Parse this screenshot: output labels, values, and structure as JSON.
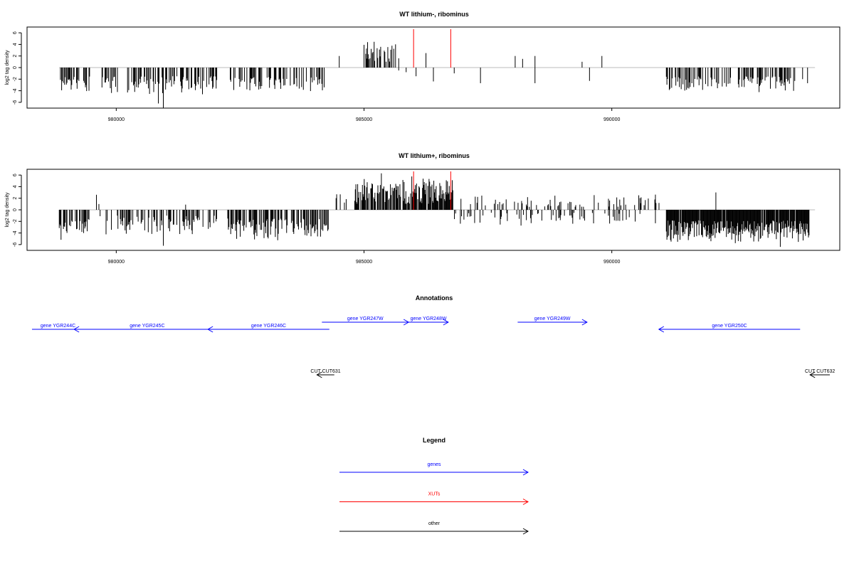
{
  "chart_data": [
    {
      "type": "bar",
      "title": "WT lithium-, ribominus",
      "ylabel": "log2 tag density",
      "xlabel": "",
      "xlim": [
        978200,
        994600
      ],
      "ylim": [
        -7,
        7
      ],
      "yticks": [
        6,
        4,
        2,
        0,
        -2,
        -4,
        -6
      ],
      "yticklabels": [
        "6",
        "4",
        "2",
        "0",
        "-2",
        "-4",
        "-6"
      ],
      "xticks": [
        980000,
        985000,
        990000
      ],
      "xticklabels": [
        "980000",
        "985000",
        "990000"
      ],
      "grid": false,
      "baseline": 0,
      "colors": {
        "bars": "#000000",
        "xut_markers": "#ff0000",
        "baseline": "#bbbbbb"
      },
      "xut_marker_positions": [
        986000,
        986750
      ],
      "series": [
        {
          "regions": [
            {
              "start": 978850,
              "end": 979500,
              "density": 0.45,
              "sign": -1,
              "min": 1.5,
              "max": 4.8
            },
            {
              "start": 979700,
              "end": 982050,
              "density": 0.4,
              "sign": -1,
              "min": 1.5,
              "max": 5.0
            },
            {
              "start": 982300,
              "end": 984200,
              "density": 0.38,
              "sign": -1,
              "min": 1.5,
              "max": 4.6
            },
            {
              "start": 985000,
              "end": 985650,
              "density": 0.55,
              "sign": 1,
              "min": 1.0,
              "max": 4.8
            },
            {
              "start": 991100,
              "end": 993700,
              "density": 0.42,
              "sign": -1,
              "min": 1.5,
              "max": 4.5
            }
          ],
          "bars": [
            {
              "x": 980950,
              "y": -7.0
            },
            {
              "x": 980850,
              "y": -6.2
            },
            {
              "x": 984500,
              "y": 2.0
            },
            {
              "x": 985700,
              "y": 1.6
            },
            {
              "x": 985700,
              "y": -0.5
            },
            {
              "x": 985850,
              "y": -0.8
            },
            {
              "x": 986050,
              "y": -1.5
            },
            {
              "x": 986250,
              "y": 2.5
            },
            {
              "x": 986400,
              "y": -2.4
            },
            {
              "x": 986820,
              "y": -1.0
            },
            {
              "x": 987350,
              "y": -2.7
            },
            {
              "x": 988050,
              "y": 2.0
            },
            {
              "x": 988200,
              "y": 1.5
            },
            {
              "x": 988450,
              "y": 2.0
            },
            {
              "x": 988450,
              "y": -2.7
            },
            {
              "x": 989400,
              "y": 1.0
            },
            {
              "x": 989550,
              "y": -2.3
            },
            {
              "x": 989800,
              "y": 2.0
            },
            {
              "x": 993850,
              "y": -2.0
            },
            {
              "x": 993950,
              "y": -2.7
            }
          ]
        }
      ]
    },
    {
      "type": "bar",
      "title": "WT lithium+, ribominus",
      "ylabel": "log2 tag density",
      "xlabel": "",
      "xlim": [
        978200,
        994600
      ],
      "ylim": [
        -7,
        7
      ],
      "yticks": [
        6,
        4,
        2,
        0,
        -2,
        -4,
        -6
      ],
      "yticklabels": [
        "6",
        "4",
        "2",
        "0",
        "-2",
        "-4",
        "-6"
      ],
      "xticks": [
        980000,
        985000,
        990000
      ],
      "xticklabels": [
        "980000",
        "985000",
        "990000"
      ],
      "grid": false,
      "baseline": 0,
      "colors": {
        "bars": "#000000",
        "xut_markers": "#ff0000",
        "baseline": "#bbbbbb"
      },
      "xut_marker_positions": [
        986000,
        986750
      ],
      "series": [
        {
          "regions": [
            {
              "start": 978850,
              "end": 979450,
              "density": 0.5,
              "sign": -1,
              "min": 1.5,
              "max": 5.3
            },
            {
              "start": 979650,
              "end": 982050,
              "density": 0.35,
              "sign": -1,
              "min": 1.0,
              "max": 4.5
            },
            {
              "start": 982250,
              "end": 984300,
              "density": 0.55,
              "sign": -1,
              "min": 1.5,
              "max": 5.4
            },
            {
              "start": 984400,
              "end": 984650,
              "density": 0.35,
              "sign": 1,
              "min": 1.0,
              "max": 3.5
            },
            {
              "start": 984800,
              "end": 986800,
              "density": 0.8,
              "sign": 1,
              "min": 1.0,
              "max": 6.2
            },
            {
              "start": 986800,
              "end": 991000,
              "density": 0.2,
              "sign": 1,
              "min": 0.5,
              "max": 2.8
            },
            {
              "start": 986800,
              "end": 991000,
              "density": 0.18,
              "sign": -1,
              "min": 0.5,
              "max": 2.8
            },
            {
              "start": 991100,
              "end": 994000,
              "density": 0.9,
              "sign": -1,
              "min": 1.8,
              "max": 6.0
            }
          ],
          "bars": [
            {
              "x": 979600,
              "y": 2.6
            },
            {
              "x": 979650,
              "y": 1.0
            },
            {
              "x": 980950,
              "y": -6.2
            },
            {
              "x": 981400,
              "y": 0.9
            },
            {
              "x": 985350,
              "y": 6.3
            },
            {
              "x": 992100,
              "y": 3.0
            },
            {
              "x": 993400,
              "y": -6.4
            }
          ]
        }
      ]
    }
  ],
  "annotations": {
    "title": "Annotations",
    "xlim": [
      978200,
      994600
    ],
    "features": [
      {
        "label": "gene YGR244C",
        "start": 978300,
        "end": 979350,
        "strand": "",
        "color": "#0000ff",
        "row": "lower"
      },
      {
        "label": "gene YGR245C",
        "start": 979150,
        "end": 982100,
        "strand": "-",
        "color": "#0000ff",
        "row": "lower"
      },
      {
        "label": "gene YGR246C",
        "start": 981850,
        "end": 984300,
        "strand": "-",
        "color": "#0000ff",
        "row": "lower"
      },
      {
        "label": "gene YGR247W",
        "start": 984150,
        "end": 985900,
        "strand": "+",
        "color": "#0000ff",
        "row": "upper"
      },
      {
        "label": "gene YGR248W",
        "start": 985900,
        "end": 986700,
        "strand": "+",
        "color": "#0000ff",
        "row": "upper"
      },
      {
        "label": "gene YGR249W",
        "start": 988100,
        "end": 989500,
        "strand": "+",
        "color": "#0000ff",
        "row": "upper"
      },
      {
        "label": "gene YGR250C",
        "start": 990950,
        "end": 993800,
        "strand": "-",
        "color": "#0000ff",
        "row": "lower"
      },
      {
        "label": "CUT CUT631",
        "start": 984050,
        "end": 984400,
        "strand": "-",
        "color": "#000000",
        "row": "cut"
      },
      {
        "label": "CUT CUT632",
        "start": 994000,
        "end": 994400,
        "strand": "-",
        "color": "#000000",
        "row": "cut"
      }
    ]
  },
  "legend": {
    "title": "Legend",
    "items": [
      {
        "label": "genes",
        "color": "#0000ff"
      },
      {
        "label": "XUTs",
        "color": "#ff0000"
      },
      {
        "label": "other",
        "color": "#000000"
      }
    ]
  }
}
